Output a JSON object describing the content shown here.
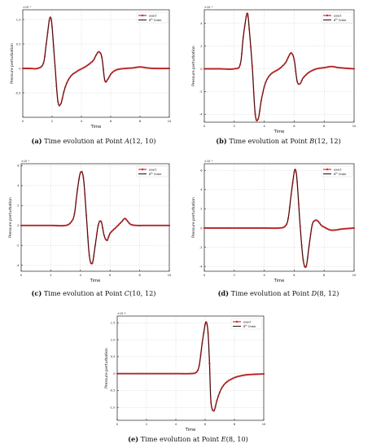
{
  "common": {
    "xlabel": "Time",
    "ylabel": "Pressure perturbation",
    "legend": {
      "exact": "exact",
      "order_prefix": "8",
      "order_suffix": "th",
      "order_rest": " Order"
    },
    "colors": {
      "exact_line": "#d62728",
      "exact_marker": "#d62728",
      "order": "#111111",
      "grid": "#d0d0d0"
    }
  },
  "captions": [
    {
      "tag": "(a)",
      "text": " Time evolution at Point ",
      "point": "A",
      "coords": "(12, 10)"
    },
    {
      "tag": "(b)",
      "text": " Time evolution at Point ",
      "point": "B",
      "coords": "(12, 12)"
    },
    {
      "tag": "(c)",
      "text": " Time evolution at Point ",
      "point": "C",
      "coords": "(10, 12)"
    },
    {
      "tag": "(d)",
      "text": " Time evolution at Point ",
      "point": "D",
      "coords": "(8, 12)"
    },
    {
      "tag": "(e)",
      "text": " Time evolution at Point ",
      "point": "E",
      "coords": "(8, 10)"
    }
  ],
  "chart_data": [
    {
      "type": "line",
      "exponent_label": "×10⁻⁵",
      "xlim": [
        0,
        10
      ],
      "ylim": [
        -1e-05,
        1.2e-05
      ],
      "xticks": [
        "0",
        "2",
        "4",
        "6",
        "8",
        "10"
      ],
      "yticks": [
        {
          "v": 1e-05,
          "label": "1.0"
        },
        {
          "v": 5e-06,
          "label": "0.5"
        },
        {
          "v": 0,
          "label": "0"
        },
        {
          "v": -5e-06,
          "label": "-0.5"
        }
      ],
      "series": [
        {
          "name": "exact"
        },
        {
          "name": "8th Order"
        }
      ],
      "x": [
        0,
        0.5,
        1,
        1.4,
        1.6,
        1.8,
        1.9,
        2.0,
        2.2,
        2.4,
        2.6,
        2.8,
        3.0,
        3.2,
        3.4,
        3.6,
        3.8,
        4.0,
        4.4,
        4.8,
        5.0,
        5.2,
        5.4,
        5.6,
        5.8,
        6.0,
        6.2,
        6.5,
        7.0,
        7.5,
        8.0,
        8.5,
        9.0,
        10
      ],
      "y": [
        0,
        0,
        0,
        1e-06,
        5e-06,
        9.7e-06,
        1.04e-05,
        8.5e-06,
        5e-07,
        -6.8e-06,
        -7.2e-06,
        -4.8e-06,
        -3e-06,
        -1.9e-06,
        -1.2e-06,
        -8e-07,
        -4e-07,
        -1e-07,
        6e-07,
        1.6e-06,
        2.7e-06,
        3.4e-06,
        2.2e-06,
        -2.5e-06,
        -2.2e-06,
        -1.2e-06,
        -6e-07,
        -2e-07,
        0,
        1e-07,
        3e-07,
        1e-07,
        0,
        0
      ]
    },
    {
      "type": "line",
      "exponent_label": "×10⁻⁵",
      "xlim": [
        0,
        10
      ],
      "ylim": [
        -4.7e-05,
        5.2e-05
      ],
      "xticks": [
        "0",
        "2",
        "4",
        "6",
        "8",
        "10"
      ],
      "yticks": [
        {
          "v": 4e-05,
          "label": "4"
        },
        {
          "v": 2e-05,
          "label": "2"
        },
        {
          "v": 0,
          "label": "0"
        },
        {
          "v": -2e-05,
          "label": "-2"
        },
        {
          "v": -4e-05,
          "label": "-4"
        }
      ],
      "series": [
        {
          "name": "exact"
        },
        {
          "name": "8th Order"
        }
      ],
      "x": [
        0,
        1,
        2.0,
        2.4,
        2.6,
        2.8,
        2.9,
        3.0,
        3.2,
        3.4,
        3.6,
        3.8,
        4.0,
        4.2,
        4.5,
        5.0,
        5.4,
        5.6,
        5.8,
        6.0,
        6.2,
        6.4,
        6.6,
        7.0,
        7.5,
        8.0,
        8.5,
        9.0,
        10
      ],
      "y": [
        0,
        0,
        0,
        4e-06,
        2.8e-05,
        4.6e-05,
        4.8e-05,
        3.5e-05,
        2e-06,
        -4e-05,
        -4.4e-05,
        -2.8e-05,
        -1.6e-05,
        -9e-06,
        -4e-06,
        0,
        5e-06,
        1e-05,
        1.4e-05,
        8e-06,
        -1.1e-05,
        -1.3e-05,
        -8e-06,
        -3e-06,
        0,
        1e-06,
        2e-06,
        1e-06,
        0
      ]
    },
    {
      "type": "line",
      "exponent_label": "×10⁻⁵",
      "xlim": [
        0,
        10
      ],
      "ylim": [
        -4.6e-05,
        6.2e-05
      ],
      "xticks": [
        "0",
        "2",
        "4",
        "6",
        "8",
        "10"
      ],
      "yticks": [
        {
          "v": 6e-05,
          "label": "6"
        },
        {
          "v": 4e-05,
          "label": "4"
        },
        {
          "v": 2e-05,
          "label": "2"
        },
        {
          "v": 0,
          "label": "0"
        },
        {
          "v": -2e-05,
          "label": "-2"
        },
        {
          "v": -4e-05,
          "label": "-4"
        }
      ],
      "series": [
        {
          "name": "exact"
        },
        {
          "name": "8th Order"
        }
      ],
      "x": [
        0,
        1,
        2,
        3.0,
        3.4,
        3.6,
        3.8,
        4.0,
        4.2,
        4.4,
        4.6,
        4.8,
        5.0,
        5.2,
        5.4,
        5.6,
        5.8,
        6.0,
        6.4,
        6.6,
        6.8,
        7.0,
        7.2,
        7.4,
        7.8,
        8.5,
        9,
        10
      ],
      "y": [
        0,
        0,
        0,
        0,
        4e-06,
        1.2e-05,
        3.6e-05,
        5.3e-05,
        4.8e-05,
        1e-05,
        -3e-05,
        -3.8e-05,
        -2e-05,
        0,
        4e-06,
        -1e-05,
        -1.5e-05,
        -8e-06,
        -2e-06,
        1e-06,
        4e-06,
        7e-06,
        4e-06,
        1e-06,
        0,
        0,
        0,
        0
      ]
    },
    {
      "type": "line",
      "exponent_label": "×10⁻⁵",
      "xlim": [
        0,
        10
      ],
      "ylim": [
        -4.5e-05,
        6.7e-05
      ],
      "xticks": [
        "0",
        "2",
        "4",
        "6",
        "8",
        "10"
      ],
      "yticks": [
        {
          "v": 6e-05,
          "label": "6"
        },
        {
          "v": 4e-05,
          "label": "4"
        },
        {
          "v": 2e-05,
          "label": "2"
        },
        {
          "v": 0,
          "label": "0"
        },
        {
          "v": -2e-05,
          "label": "-2"
        },
        {
          "v": -4e-05,
          "label": "-4"
        }
      ],
      "series": [
        {
          "name": "exact"
        },
        {
          "name": "8th Order"
        }
      ],
      "x": [
        0,
        1,
        2,
        3,
        4,
        5.0,
        5.4,
        5.6,
        5.8,
        6.0,
        6.1,
        6.2,
        6.4,
        6.6,
        6.8,
        7.0,
        7.2,
        7.4,
        7.6,
        7.8,
        8.0,
        8.4,
        8.8,
        9.2,
        10
      ],
      "y": [
        0,
        0,
        0,
        0,
        0,
        0,
        2e-06,
        1e-05,
        3.5e-05,
        5.8e-05,
        6e-05,
        4.8e-05,
        2e-06,
        -3.3e-05,
        -4e-05,
        -1.8e-05,
        3e-06,
        8e-06,
        7e-06,
        3e-06,
        1e-06,
        -2e-06,
        -2e-06,
        -1e-06,
        0
      ]
    },
    {
      "type": "line",
      "exponent_label": "×10⁻⁴",
      "xlim": [
        0,
        10
      ],
      "ylim": [
        -0.000138,
        0.00017
      ],
      "xticks": [
        "0",
        "2",
        "4",
        "6",
        "8",
        "10"
      ],
      "yticks": [
        {
          "v": 0.00015,
          "label": "1.5"
        },
        {
          "v": 0.0001,
          "label": "1.0"
        },
        {
          "v": 5e-05,
          "label": "0.5"
        },
        {
          "v": 0,
          "label": "0"
        },
        {
          "v": -5e-05,
          "label": "-0.5"
        },
        {
          "v": -0.0001,
          "label": "-1.0"
        }
      ],
      "series": [
        {
          "name": "exact"
        },
        {
          "name": "8th Order"
        }
      ],
      "x": [
        0,
        1,
        2,
        3,
        4,
        5,
        5.4,
        5.6,
        5.8,
        6.0,
        6.1,
        6.2,
        6.3,
        6.4,
        6.6,
        6.8,
        7.0,
        7.2,
        7.5,
        8.0,
        8.5,
        9.0,
        10
      ],
      "y": [
        0,
        0,
        0,
        0,
        0,
        0,
        4e-06,
        2.5e-05,
        9e-05,
        0.000145,
        0.00015,
        0.00012,
        3e-05,
        -8.5e-05,
        -0.00011,
        -8e-05,
        -5.5e-05,
        -3.8e-05,
        -2.4e-05,
        -1.2e-05,
        -6e-06,
        -3e-06,
        -1e-06
      ]
    }
  ]
}
